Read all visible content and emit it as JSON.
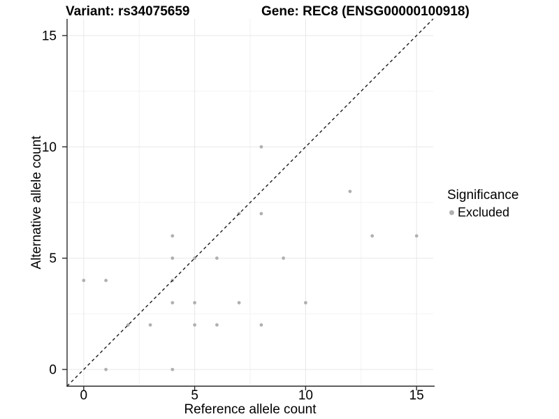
{
  "titles": {
    "left": "Variant: rs34075659",
    "right": "Gene: REC8 (ENSG00000100918)"
  },
  "x_axis": {
    "title": "Reference allele count",
    "tick_labels": [
      "0",
      "5",
      "10",
      "15"
    ]
  },
  "y_axis": {
    "title": "Alternative allele count",
    "tick_labels": [
      "0",
      "5",
      "10",
      "15"
    ]
  },
  "legend": {
    "title": "Significance",
    "items": [
      {
        "label": "Excluded",
        "color": "#b0b0b0"
      }
    ]
  },
  "chart_data": {
    "type": "scatter",
    "title": "Variant: rs34075659 | Gene: REC8 (ENSG00000100918)",
    "xlabel": "Reference allele count",
    "ylabel": "Alternative allele count",
    "xlim": [
      -0.75,
      15.75
    ],
    "ylim": [
      -0.75,
      15.75
    ],
    "x_major_ticks": [
      0,
      5,
      10,
      15
    ],
    "y_major_ticks": [
      0,
      5,
      10,
      15
    ],
    "x_minor_gridlines": [
      2.5,
      7.5,
      12.5
    ],
    "y_minor_gridlines": [
      2.5,
      7.5,
      12.5
    ],
    "grid": "major and minor, light grey on white",
    "legend_position": "right",
    "reference_line": {
      "slope": 1,
      "intercept": 0,
      "style": "dashed",
      "color": "#1a1a1a"
    },
    "series": [
      {
        "name": "Excluded",
        "color": "#b0b0b0",
        "points": [
          [
            1,
            0
          ],
          [
            4,
            0
          ],
          [
            2,
            2
          ],
          [
            3,
            2
          ],
          [
            5,
            2
          ],
          [
            6,
            2
          ],
          [
            8,
            2
          ],
          [
            4,
            3
          ],
          [
            5,
            3
          ],
          [
            7,
            3
          ],
          [
            10,
            3
          ],
          [
            0,
            4
          ],
          [
            1,
            4
          ],
          [
            4,
            4
          ],
          [
            4,
            5
          ],
          [
            5,
            5
          ],
          [
            6,
            5
          ],
          [
            9,
            5
          ],
          [
            4,
            6
          ],
          [
            13,
            6
          ],
          [
            15,
            6
          ],
          [
            7,
            7
          ],
          [
            8,
            7
          ],
          [
            12,
            8
          ],
          [
            8,
            10
          ]
        ]
      }
    ]
  },
  "colors": {
    "background": "#ffffff",
    "point": "#b0b0b0",
    "grid_major": "#e7e7e7",
    "grid_minor": "#f2f2f2",
    "axis_line": "#2b2b2b",
    "text": "#000000"
  }
}
